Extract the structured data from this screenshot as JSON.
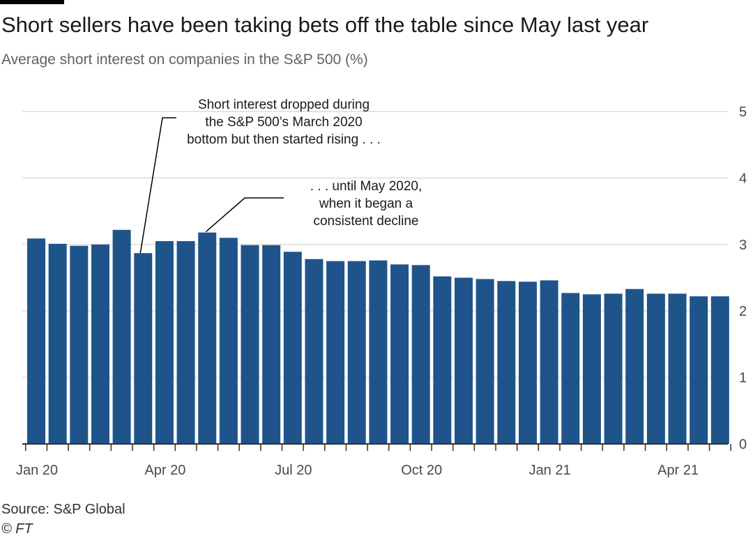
{
  "title": "Short sellers have been taking bets off the table since May last year",
  "subtitle": "Average short interest on companies in the S&P 500 (%)",
  "source": "Source: S&P Global",
  "credit": "© FT",
  "colors": {
    "bar": "#1f548b",
    "grid": "#e6e3e0",
    "axis": "#33302e",
    "annotation_line": "#000000"
  },
  "chart_data": {
    "type": "bar",
    "title": "Short sellers have been taking bets off the table since May last year",
    "subtitle": "Average short interest on companies in the S&P 500 (%)",
    "ylabel": "",
    "xlabel": "",
    "ylim": [
      0,
      5
    ],
    "yticks": [
      0,
      1,
      2,
      3,
      4,
      5
    ],
    "y_axis_side": "right",
    "grid": true,
    "x_tick_labels": [
      {
        "label": "Jan 20",
        "at": "2020-01"
      },
      {
        "label": "Apr 20",
        "at": "2020-04"
      },
      {
        "label": "Jul 20",
        "at": "2020-07"
      },
      {
        "label": "Oct 20",
        "at": "2020-10"
      },
      {
        "label": "Jan 21",
        "at": "2021-01"
      },
      {
        "label": "Apr 21",
        "at": "2021-04"
      }
    ],
    "categories": [
      "2020-01a",
      "2020-01b",
      "2020-02a",
      "2020-02b",
      "2020-03a",
      "2020-03b",
      "2020-04a",
      "2020-04b",
      "2020-05a",
      "2020-05b",
      "2020-06a",
      "2020-06b",
      "2020-07a",
      "2020-07b",
      "2020-08a",
      "2020-08b",
      "2020-09a",
      "2020-09b",
      "2020-10a",
      "2020-10b",
      "2020-11a",
      "2020-11b",
      "2020-12a",
      "2020-12b",
      "2021-01a",
      "2021-01b",
      "2021-02a",
      "2021-02b",
      "2021-03a",
      "2021-03b",
      "2021-04a",
      "2021-04b",
      "2021-05a"
    ],
    "values": [
      3.09,
      3.01,
      2.98,
      3.0,
      3.22,
      2.87,
      3.05,
      3.05,
      3.18,
      3.1,
      2.99,
      2.99,
      2.89,
      2.78,
      2.75,
      2.75,
      2.76,
      2.7,
      2.69,
      2.52,
      2.5,
      2.48,
      2.45,
      2.44,
      2.46,
      2.27,
      2.25,
      2.26,
      2.33,
      2.26,
      2.26,
      2.22,
      2.22
    ],
    "annotations": [
      {
        "lines": [
          "Short interest dropped during",
          "the S&P 500’s March 2020",
          "bottom but then started rising . . ."
        ],
        "points_to": "2020-03b"
      },
      {
        "lines": [
          ". . . until May 2020,",
          "when it began a",
          "consistent decline"
        ],
        "points_to": "2020-05a"
      }
    ]
  }
}
